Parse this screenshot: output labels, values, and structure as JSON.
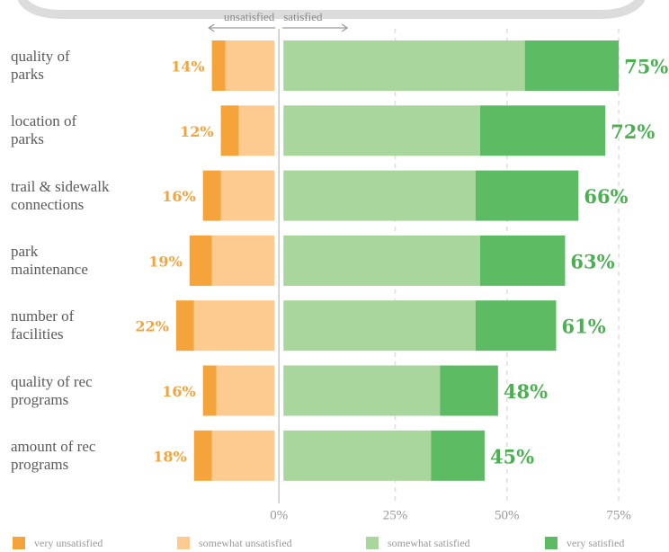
{
  "chart_data": {
    "type": "diverging-bar",
    "side_labels": [
      "unsatisfied",
      "satisfied"
    ],
    "categories": [
      "quality of\nparks",
      "location of\nparks",
      "trail & sidewalk\nconnections",
      "park\nmaintenance",
      "number of\nfacilities",
      "quality of rec\nprograms",
      "amount of rec\nprograms"
    ],
    "series": [
      {
        "name": "very unsatisfied",
        "color": "#f5a43c",
        "values": [
          3,
          4,
          4,
          5,
          4,
          3,
          4
        ]
      },
      {
        "name": "somewhat unsatisfied",
        "color": "#fdca90",
        "values": [
          11,
          8,
          12,
          14,
          18,
          13,
          14
        ]
      },
      {
        "name": "somewhat satisfied",
        "color": "#a9d69c",
        "values": [
          54,
          44,
          43,
          44,
          43,
          35,
          33
        ]
      },
      {
        "name": "very satisfied",
        "color": "#5dbb63",
        "values": [
          21,
          28,
          23,
          19,
          18,
          13,
          12
        ]
      }
    ],
    "unsatisfied_total": {
      "color": "#f5a43c",
      "values": [
        14,
        12,
        16,
        19,
        22,
        16,
        18
      ],
      "value_labels": [
        "14%",
        "12%",
        "16%",
        "19%",
        "22%",
        "16%",
        "18%"
      ]
    },
    "satisfied_total": {
      "color": "#4cb052",
      "values": [
        75,
        72,
        66,
        63,
        61,
        48,
        45
      ],
      "value_labels": [
        "75%",
        "72%",
        "66%",
        "63%",
        "61%",
        "48%",
        "45%"
      ]
    },
    "xlim": [
      -27,
      78
    ],
    "xticks": [
      {
        "value": 0,
        "label": "0%"
      },
      {
        "value": 25,
        "label": "25%"
      },
      {
        "value": 50,
        "label": "50%"
      },
      {
        "value": 75,
        "label": "75%"
      }
    ],
    "grid": true
  }
}
